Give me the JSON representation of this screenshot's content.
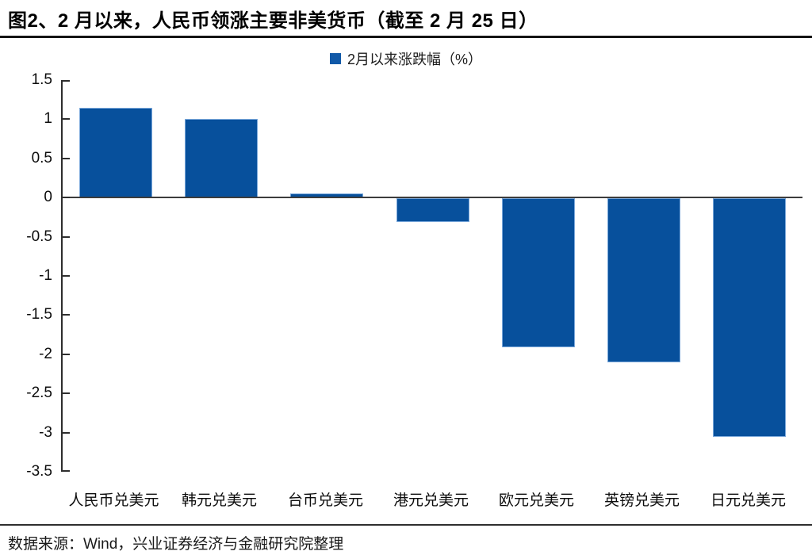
{
  "header": {
    "title": "图2、2 月以来，人民币领涨主要非美货币（截至 2 月 25 日）"
  },
  "chart_data": {
    "type": "bar",
    "legend": [
      "2月以来涨跌幅（%）"
    ],
    "legend_position": "top-center",
    "categories": [
      "人民币兑美元",
      "韩元兑美元",
      "台币兑美元",
      "港元兑美元",
      "欧元兑美元",
      "英镑兑美元",
      "日元兑美元"
    ],
    "values": [
      1.15,
      1.0,
      0.05,
      -0.3,
      -1.9,
      -2.1,
      -3.05
    ],
    "xlabel": "",
    "ylabel": "",
    "ylim": [
      -3.5,
      1.5
    ],
    "ytick_step": 0.5,
    "grid": false,
    "bar_color": "#07509C",
    "bar_border_color": "#79A7DA",
    "legend_swatch_color": "#1159A8",
    "axis_color": "#2e2e2e"
  },
  "footer": {
    "source": "数据来源：Wind，兴业证券经济与金融研究院整理"
  }
}
